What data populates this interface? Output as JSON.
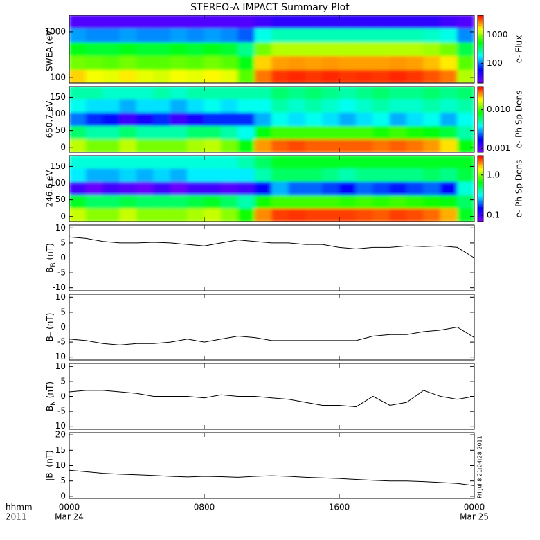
{
  "title": "STEREO-A IMPACT Summary Plot",
  "timestamp": "Fri Jul  8 21:04:28 2011",
  "x_axis": {
    "xlim": [
      0,
      24
    ],
    "label": "hhmm",
    "year": "2011",
    "xticks": [
      {
        "value": 0,
        "label": "0000"
      },
      {
        "value": 8,
        "label": "0800"
      },
      {
        "value": 16,
        "label": "1600"
      },
      {
        "value": 24,
        "label": "0000"
      }
    ],
    "dates": [
      {
        "value": 0,
        "label": "Mar 24"
      },
      {
        "value": 24,
        "label": "Mar 25"
      }
    ]
  },
  "colormap": [
    "#7f00ff",
    "#0000ff",
    "#00ffff",
    "#00ff00",
    "#ffff00",
    "#ff0000"
  ],
  "chart_data": [
    {
      "type": "heatmap",
      "ylabel": "SWEA (eV)",
      "ylog": true,
      "ylim": [
        76,
        2300
      ],
      "yticks": [
        100,
        1000
      ],
      "x_bins": [
        0,
        1,
        2,
        3,
        4,
        5,
        6,
        7,
        8,
        9,
        10,
        11,
        12,
        13,
        14,
        15,
        16,
        17,
        18,
        19,
        20,
        21,
        22,
        23,
        24
      ],
      "y_bins": [
        76,
        150,
        300,
        600,
        1200,
        2300
      ],
      "values": [
        [
          2000,
          1600,
          1500,
          1800,
          1500,
          1400,
          1600,
          1500,
          1700,
          1500,
          800,
          3000,
          4000,
          4200,
          4000,
          4200,
          4000,
          4100,
          4000,
          4200,
          4000,
          3500,
          3000,
          1200
        ],
        [
          900,
          850,
          800,
          900,
          800,
          800,
          850,
          800,
          900,
          800,
          500,
          2000,
          2500,
          2600,
          2500,
          2600,
          2500,
          2500,
          2500,
          2600,
          2500,
          2200,
          1800,
          800
        ],
        [
          500,
          450,
          450,
          500,
          450,
          450,
          500,
          450,
          500,
          450,
          300,
          900,
          1200,
          1200,
          1200,
          1200,
          1200,
          1200,
          1200,
          1200,
          1200,
          1100,
          900,
          400
        ],
        [
          120,
          110,
          110,
          120,
          110,
          110,
          120,
          110,
          120,
          110,
          90,
          200,
          250,
          250,
          250,
          250,
          250,
          250,
          250,
          250,
          250,
          230,
          200,
          110
        ],
        [
          30,
          30,
          30,
          30,
          30,
          30,
          30,
          30,
          30,
          30,
          30,
          35,
          40,
          40,
          40,
          40,
          40,
          40,
          40,
          40,
          40,
          40,
          35,
          30
        ]
      ],
      "colorbar": {
        "label": "e- Flux",
        "log": true,
        "clim": [
          20,
          5000
        ],
        "ticks": [
          100,
          1000
        ]
      }
    },
    {
      "type": "heatmap",
      "ylabel": "650.7 eV",
      "ylim": [
        -15,
        182
      ],
      "yticks": [
        0,
        50,
        100,
        150
      ],
      "x_bins": [
        0,
        1,
        2,
        3,
        4,
        5,
        6,
        7,
        8,
        9,
        10,
        11,
        12,
        13,
        14,
        15,
        16,
        17,
        18,
        19,
        20,
        21,
        22,
        23,
        24
      ],
      "y_bins": [
        -15,
        25,
        65,
        105,
        145,
        182
      ],
      "values": [
        [
          0.015,
          0.012,
          0.012,
          0.015,
          0.012,
          0.012,
          0.012,
          0.014,
          0.015,
          0.012,
          0.008,
          0.025,
          0.03,
          0.032,
          0.03,
          0.03,
          0.03,
          0.03,
          0.028,
          0.03,
          0.028,
          0.025,
          0.02,
          0.008
        ],
        [
          0.006,
          0.005,
          0.005,
          0.006,
          0.005,
          0.005,
          0.005,
          0.006,
          0.006,
          0.005,
          0.004,
          0.008,
          0.01,
          0.01,
          0.01,
          0.01,
          0.01,
          0.01,
          0.009,
          0.01,
          0.009,
          0.008,
          0.007,
          0.005
        ],
        [
          0.0025,
          0.002,
          0.0018,
          0.0012,
          0.0015,
          0.002,
          0.0012,
          0.0015,
          0.002,
          0.002,
          0.002,
          0.003,
          0.004,
          0.0035,
          0.004,
          0.0035,
          0.003,
          0.0035,
          0.004,
          0.003,
          0.0035,
          0.004,
          0.003,
          0.004
        ],
        [
          0.004,
          0.0035,
          0.0035,
          0.003,
          0.0035,
          0.0035,
          0.003,
          0.0035,
          0.004,
          0.0035,
          0.004,
          0.004,
          0.005,
          0.0045,
          0.005,
          0.0045,
          0.004,
          0.0045,
          0.005,
          0.0045,
          0.0045,
          0.005,
          0.0045,
          0.005
        ],
        [
          0.005,
          0.005,
          0.0045,
          0.0045,
          0.0045,
          0.005,
          0.0045,
          0.005,
          0.005,
          0.005,
          0.005,
          0.005,
          0.006,
          0.0055,
          0.006,
          0.0055,
          0.005,
          0.0055,
          0.006,
          0.0055,
          0.0055,
          0.006,
          0.0055,
          0.006
        ]
      ],
      "colorbar": {
        "label": "e- Ph Sp Dens",
        "log": true,
        "clim": [
          0.0008,
          0.04
        ],
        "ticks": [
          0.001,
          {
            "value": 0.01,
            "label": "0.010"
          }
        ]
      }
    },
    {
      "type": "heatmap",
      "ylabel": "246.6 eV",
      "ylim": [
        -15,
        182
      ],
      "yticks": [
        0,
        50,
        100,
        150
      ],
      "x_bins": [
        0,
        1,
        2,
        3,
        4,
        5,
        6,
        7,
        8,
        9,
        10,
        11,
        12,
        13,
        14,
        15,
        16,
        17,
        18,
        19,
        20,
        21,
        22,
        23,
        24
      ],
      "y_bins": [
        -15,
        25,
        65,
        105,
        145,
        182
      ],
      "values": [
        [
          1.2,
          1.0,
          1.0,
          1.2,
          1.0,
          1.0,
          1.0,
          1.1,
          1.2,
          1.0,
          0.7,
          2.0,
          2.5,
          2.6,
          2.5,
          2.5,
          2.5,
          2.4,
          2.3,
          2.5,
          2.4,
          2.2,
          1.8,
          0.6
        ],
        [
          0.6,
          0.5,
          0.5,
          0.55,
          0.5,
          0.5,
          0.5,
          0.55,
          0.6,
          0.5,
          0.4,
          0.7,
          0.8,
          0.8,
          0.8,
          0.8,
          0.75,
          0.8,
          0.75,
          0.8,
          0.75,
          0.7,
          0.65,
          0.5
        ],
        [
          0.1,
          0.08,
          0.1,
          0.09,
          0.08,
          0.1,
          0.08,
          0.1,
          0.1,
          0.09,
          0.1,
          0.15,
          0.25,
          0.2,
          0.2,
          0.18,
          0.15,
          0.2,
          0.18,
          0.16,
          0.18,
          0.2,
          0.15,
          0.35
        ],
        [
          0.3,
          0.25,
          0.25,
          0.28,
          0.25,
          0.28,
          0.25,
          0.3,
          0.3,
          0.3,
          0.3,
          0.4,
          0.5,
          0.5,
          0.5,
          0.45,
          0.4,
          0.45,
          0.45,
          0.45,
          0.45,
          0.5,
          0.45,
          0.55
        ],
        [
          0.35,
          0.35,
          0.35,
          0.35,
          0.35,
          0.35,
          0.35,
          0.35,
          0.35,
          0.35,
          0.4,
          0.5,
          0.6,
          0.6,
          0.6,
          0.6,
          0.6,
          0.6,
          0.6,
          0.6,
          0.6,
          0.6,
          0.6,
          0.6
        ]
      ],
      "colorbar": {
        "label": "e- Ph Sp Dens",
        "log": true,
        "clim": [
          0.07,
          3
        ],
        "ticks": [
          0.1,
          {
            "value": 1,
            "label": "1.0"
          }
        ]
      }
    },
    {
      "type": "line",
      "ylabel": {
        "text": "B",
        "sub": "R",
        "unit": " (nT)"
      },
      "ylim": [
        -11,
        11
      ],
      "yticks": [
        -10,
        -5,
        0,
        5,
        10
      ],
      "color": "#000000",
      "x": [
        0,
        1,
        2,
        3,
        4,
        5,
        6,
        7,
        8,
        9,
        10,
        11,
        12,
        13,
        14,
        15,
        16,
        17,
        18,
        19,
        20,
        21,
        22,
        23,
        24
      ],
      "values": [
        7,
        6.5,
        5.5,
        5,
        5,
        5.2,
        5,
        4.5,
        4,
        5,
        6,
        5.5,
        5,
        5,
        4.5,
        4.5,
        3.5,
        3,
        3.5,
        3.5,
        4,
        3.8,
        4,
        3.5,
        0
      ]
    },
    {
      "type": "line",
      "ylabel": {
        "text": "B",
        "sub": "T",
        "unit": " (nT)"
      },
      "ylim": [
        -11,
        11
      ],
      "yticks": [
        -10,
        -5,
        0,
        5,
        10
      ],
      "color": "#000000",
      "x": [
        0,
        1,
        2,
        3,
        4,
        5,
        6,
        7,
        8,
        9,
        10,
        11,
        12,
        13,
        14,
        15,
        16,
        17,
        18,
        19,
        20,
        21,
        22,
        23,
        24
      ],
      "values": [
        -4,
        -4.5,
        -5.5,
        -6,
        -5.5,
        -5.5,
        -5,
        -4,
        -5,
        -4,
        -3,
        -3.5,
        -4.5,
        -4.5,
        -4.5,
        -4.5,
        -4.5,
        -4.5,
        -3,
        -2.5,
        -2.5,
        -1.5,
        -1,
        0,
        -3.5
      ]
    },
    {
      "type": "line",
      "ylabel": {
        "text": "B",
        "sub": "N",
        "unit": " (nT)"
      },
      "ylim": [
        -11,
        11
      ],
      "yticks": [
        -10,
        -5,
        0,
        5,
        10
      ],
      "color": "#000000",
      "x": [
        0,
        1,
        2,
        3,
        4,
        5,
        6,
        7,
        8,
        9,
        10,
        11,
        12,
        13,
        14,
        15,
        16,
        17,
        18,
        19,
        20,
        21,
        22,
        23,
        24
      ],
      "values": [
        1.5,
        2,
        2,
        1.5,
        1,
        0,
        0,
        0,
        -0.5,
        0.5,
        0,
        0,
        -0.5,
        -1,
        -2,
        -3,
        -3,
        -3.5,
        0,
        -3,
        -2,
        2,
        0,
        -1,
        0
      ]
    },
    {
      "type": "line",
      "ylabel": "|B| (nT)",
      "ylim": [
        -0.7,
        20.7
      ],
      "yticks": [
        0,
        5,
        10,
        15,
        20
      ],
      "color": "#000000",
      "x": [
        0,
        1,
        2,
        3,
        4,
        5,
        6,
        7,
        8,
        9,
        10,
        11,
        12,
        13,
        14,
        15,
        16,
        17,
        18,
        19,
        20,
        21,
        22,
        23,
        24
      ],
      "values": [
        8.5,
        8,
        7.5,
        7.2,
        7,
        6.8,
        6.5,
        6.3,
        6.5,
        6.4,
        6.2,
        6.5,
        6.7,
        6.5,
        6.2,
        6,
        5.8,
        5.5,
        5.2,
        5,
        5,
        4.8,
        4.5,
        4.2,
        3.5
      ]
    }
  ]
}
